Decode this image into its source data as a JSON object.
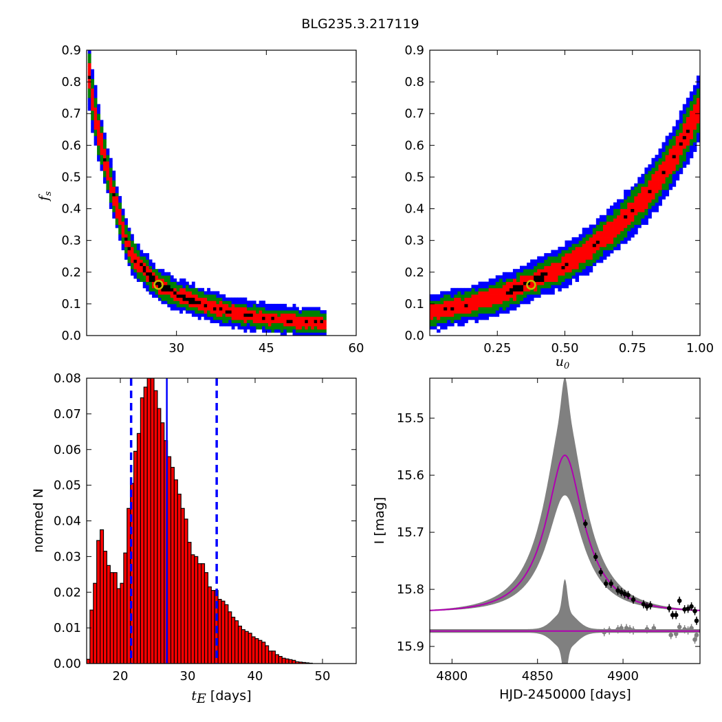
{
  "figure_title": "BLG235.3.217119",
  "colors": {
    "blue": "#0000ff",
    "green": "#008000",
    "red": "#ff0000",
    "black": "#000000",
    "marker": "#bfbf00",
    "model": "#b000b0",
    "gray": "#808080"
  },
  "chart_data": [
    {
      "panel": "top-left",
      "type": "heatmap",
      "xlabel": "",
      "ylabel": "f_s",
      "ylabel_sub": "s",
      "ylabel_main": "f",
      "xlim": [
        15,
        60
      ],
      "ylim": [
        0.0,
        0.9
      ],
      "xticks": [
        30,
        45,
        60
      ],
      "xtick_labels": [
        "30",
        "45",
        "60"
      ],
      "yticks": [
        0.0,
        0.1,
        0.2,
        0.3,
        0.4,
        0.5,
        0.6,
        0.7,
        0.8,
        0.9
      ],
      "ytick_labels": [
        "0.0",
        "0.1",
        "0.2",
        "0.3",
        "0.4",
        "0.5",
        "0.6",
        "0.7",
        "0.8",
        "0.9"
      ],
      "best_fit": {
        "x": 27.0,
        "y": 0.16
      },
      "ridge": [
        [
          15.2,
          0.85
        ],
        [
          16,
          0.74
        ],
        [
          17,
          0.64
        ],
        [
          18,
          0.56
        ],
        [
          19,
          0.48
        ],
        [
          20,
          0.41
        ],
        [
          21,
          0.34
        ],
        [
          22,
          0.28
        ],
        [
          23,
          0.24
        ],
        [
          25,
          0.2
        ],
        [
          27,
          0.16
        ],
        [
          30,
          0.13
        ],
        [
          33,
          0.11
        ],
        [
          36,
          0.09
        ],
        [
          40,
          0.07
        ],
        [
          45,
          0.055
        ],
        [
          50,
          0.045
        ],
        [
          55,
          0.04
        ]
      ],
      "contour_levels": [
        "blue",
        "green",
        "red",
        "black"
      ]
    },
    {
      "panel": "top-right",
      "type": "heatmap",
      "xlabel": "u_0",
      "xlabel_main": "u",
      "xlabel_sub": "0",
      "ylabel": "",
      "xlim": [
        0.0,
        1.0
      ],
      "ylim": [
        0.0,
        0.9
      ],
      "xticks": [
        0.25,
        0.5,
        0.75,
        1.0
      ],
      "xtick_labels": [
        "0.25",
        "0.50",
        "0.75",
        "1.00"
      ],
      "yticks": [
        0.0,
        0.1,
        0.2,
        0.3,
        0.4,
        0.5,
        0.6,
        0.7,
        0.8,
        0.9
      ],
      "ytick_labels": [
        "0.0",
        "0.1",
        "0.2",
        "0.3",
        "0.4",
        "0.5",
        "0.6",
        "0.7",
        "0.8",
        "0.9"
      ],
      "best_fit": {
        "x": 0.375,
        "y": 0.16
      },
      "ridge": [
        [
          0.0,
          0.07
        ],
        [
          0.1,
          0.09
        ],
        [
          0.2,
          0.11
        ],
        [
          0.3,
          0.14
        ],
        [
          0.4,
          0.18
        ],
        [
          0.5,
          0.22
        ],
        [
          0.6,
          0.28
        ],
        [
          0.7,
          0.35
        ],
        [
          0.8,
          0.44
        ],
        [
          0.9,
          0.56
        ],
        [
          1.0,
          0.72
        ]
      ],
      "contour_levels": [
        "blue",
        "green",
        "red",
        "black"
      ]
    },
    {
      "panel": "bottom-left",
      "type": "bar",
      "xlabel": "t_E  [days]",
      "xlabel_main": "t",
      "xlabel_sub": "E",
      "xlabel_rest": " [days]",
      "ylabel": "normed N",
      "xlim": [
        15,
        55
      ],
      "ylim": [
        0.0,
        0.08
      ],
      "xticks": [
        20,
        30,
        40,
        50
      ],
      "xtick_labels": [
        "20",
        "30",
        "40",
        "50"
      ],
      "yticks": [
        0.0,
        0.01,
        0.02,
        0.03,
        0.04,
        0.05,
        0.06,
        0.07,
        0.08
      ],
      "ytick_labels": [
        "0.00",
        "0.01",
        "0.02",
        "0.03",
        "0.04",
        "0.05",
        "0.06",
        "0.07",
        "0.08"
      ],
      "bin_start": 15.0,
      "bin_width": 0.5,
      "values": [
        0.0012,
        0.015,
        0.0225,
        0.0345,
        0.0375,
        0.0315,
        0.0275,
        0.0255,
        0.0255,
        0.021,
        0.0225,
        0.031,
        0.0435,
        0.0505,
        0.0595,
        0.0645,
        0.0745,
        0.0775,
        0.08,
        0.08,
        0.0765,
        0.0715,
        0.0675,
        0.0625,
        0.058,
        0.055,
        0.0515,
        0.0475,
        0.0435,
        0.0405,
        0.034,
        0.0305,
        0.03,
        0.028,
        0.028,
        0.0255,
        0.0215,
        0.0205,
        0.0205,
        0.018,
        0.0175,
        0.0165,
        0.0145,
        0.013,
        0.012,
        0.0105,
        0.0095,
        0.009,
        0.0085,
        0.0075,
        0.007,
        0.0065,
        0.006,
        0.005,
        0.0035,
        0.0035,
        0.0025,
        0.002,
        0.0015,
        0.0013,
        0.0011,
        0.0009,
        0.0005,
        0.0004,
        0.0003,
        0.0002,
        0.0001
      ],
      "median_line": 26.9,
      "interval_lines": [
        21.6,
        34.3
      ]
    },
    {
      "panel": "bottom-right",
      "type": "line",
      "xlabel": "HJD-2450000 [days]",
      "ylabel": "I [mag]",
      "xlim": [
        4787,
        4945
      ],
      "ylim": [
        15.93,
        15.43
      ],
      "y_inverted": true,
      "xticks": [
        4800,
        4850,
        4900
      ],
      "xtick_labels": [
        "4800",
        "4850",
        "4900"
      ],
      "yticks": [
        15.5,
        15.6,
        15.7,
        15.8,
        15.9
      ],
      "ytick_labels": [
        "15.5",
        "15.6",
        "15.7",
        "15.8",
        "15.9"
      ],
      "model": {
        "t0": 4866.0,
        "peak_mag": 15.565,
        "baseline_mag": 15.84,
        "tE": 27.0,
        "u0": 0.37
      },
      "data_points": [
        [
          4878,
          15.685
        ],
        [
          4884,
          15.743
        ],
        [
          4887,
          15.77
        ],
        [
          4890,
          15.79
        ],
        [
          4893,
          15.79
        ],
        [
          4897,
          15.802
        ],
        [
          4899,
          15.805
        ],
        [
          4901,
          15.808
        ],
        [
          4903,
          15.81
        ],
        [
          4906,
          15.818
        ],
        [
          4912,
          15.826
        ],
        [
          4914,
          15.83
        ],
        [
          4916,
          15.828
        ],
        [
          4927,
          15.833
        ],
        [
          4929,
          15.845
        ],
        [
          4931,
          15.845
        ],
        [
          4933,
          15.82
        ],
        [
          4936,
          15.835
        ],
        [
          4938,
          15.834
        ],
        [
          4940,
          15.83
        ],
        [
          4942,
          15.838
        ],
        [
          4943,
          15.855
        ]
      ],
      "residuals": [
        [
          4889,
          15.875
        ],
        [
          4892,
          15.872
        ],
        [
          4897,
          15.87
        ],
        [
          4899,
          15.868
        ],
        [
          4902,
          15.868
        ],
        [
          4904,
          15.87
        ],
        [
          4906,
          15.872
        ],
        [
          4914,
          15.87
        ],
        [
          4918,
          15.868
        ],
        [
          4928,
          15.88
        ],
        [
          4931,
          15.878
        ],
        [
          4933,
          15.866
        ],
        [
          4936,
          15.87
        ],
        [
          4938,
          15.872
        ],
        [
          4940,
          15.868
        ],
        [
          4942,
          15.888
        ],
        [
          4943,
          15.88
        ]
      ],
      "residual_baseline": 15.873
    }
  ]
}
